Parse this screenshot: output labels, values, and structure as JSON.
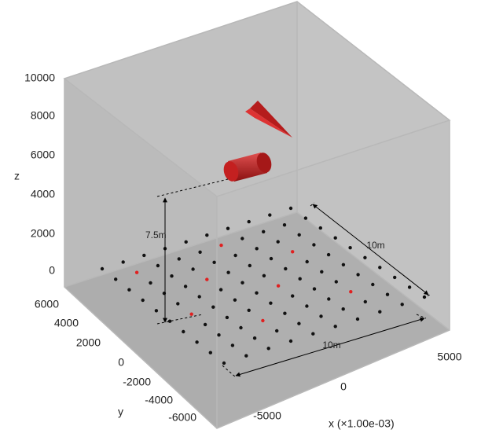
{
  "axes": {
    "z": {
      "label": "z",
      "ticks": [
        "10000",
        "8000",
        "6000",
        "4000",
        "2000",
        "0"
      ]
    },
    "y": {
      "label": "y",
      "ticks": [
        "6000",
        "4000",
        "2000",
        "0",
        "-2000",
        "-4000",
        "-6000"
      ]
    },
    "x": {
      "label": "x  (×1.00e-03)",
      "ticks": [
        "-5000",
        "0",
        "5000"
      ]
    }
  },
  "annotations": {
    "height": "7.5m",
    "length_x": "10m",
    "length_y": "10m"
  }
}
